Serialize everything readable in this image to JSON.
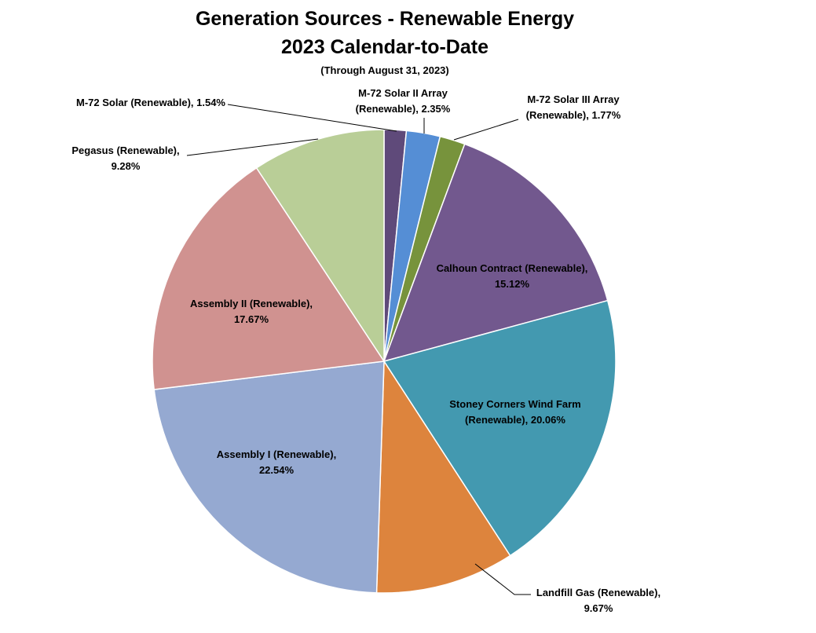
{
  "chart_data": {
    "type": "pie",
    "title": "Generation Sources - Renewable Energy",
    "subtitle": "2023 Calendar-to-Date",
    "note": "(Through August 31, 2023)",
    "start_angle": "top (12 o'clock), clockwise",
    "legend": "none (data labels with leader lines)",
    "slices": [
      {
        "name": "M-72 Solar (Renewable)",
        "value": 1.54,
        "color": "#5F4A7A"
      },
      {
        "name": "M-72 Solar II Array (Renewable)",
        "value": 2.35,
        "color": "#558ED5"
      },
      {
        "name": "M-72 Solar III Array (Renewable)",
        "value": 1.77,
        "color": "#77933C"
      },
      {
        "name": "Calhoun Contract (Renewable)",
        "value": 15.12,
        "color": "#72588E"
      },
      {
        "name": "Stoney Corners Wind Farm (Renewable)",
        "value": 20.06,
        "color": "#4399B0"
      },
      {
        "name": "Landfill Gas (Renewable)",
        "value": 9.67,
        "color": "#DD843D"
      },
      {
        "name": "Assembly I (Renewable)",
        "value": 22.54,
        "color": "#95A9D1"
      },
      {
        "name": "Assembly II (Renewable)",
        "value": 17.67,
        "color": "#D09290"
      },
      {
        "name": "Pegasus (Renewable)",
        "value": 9.28,
        "color": "#B9CE97"
      }
    ]
  }
}
